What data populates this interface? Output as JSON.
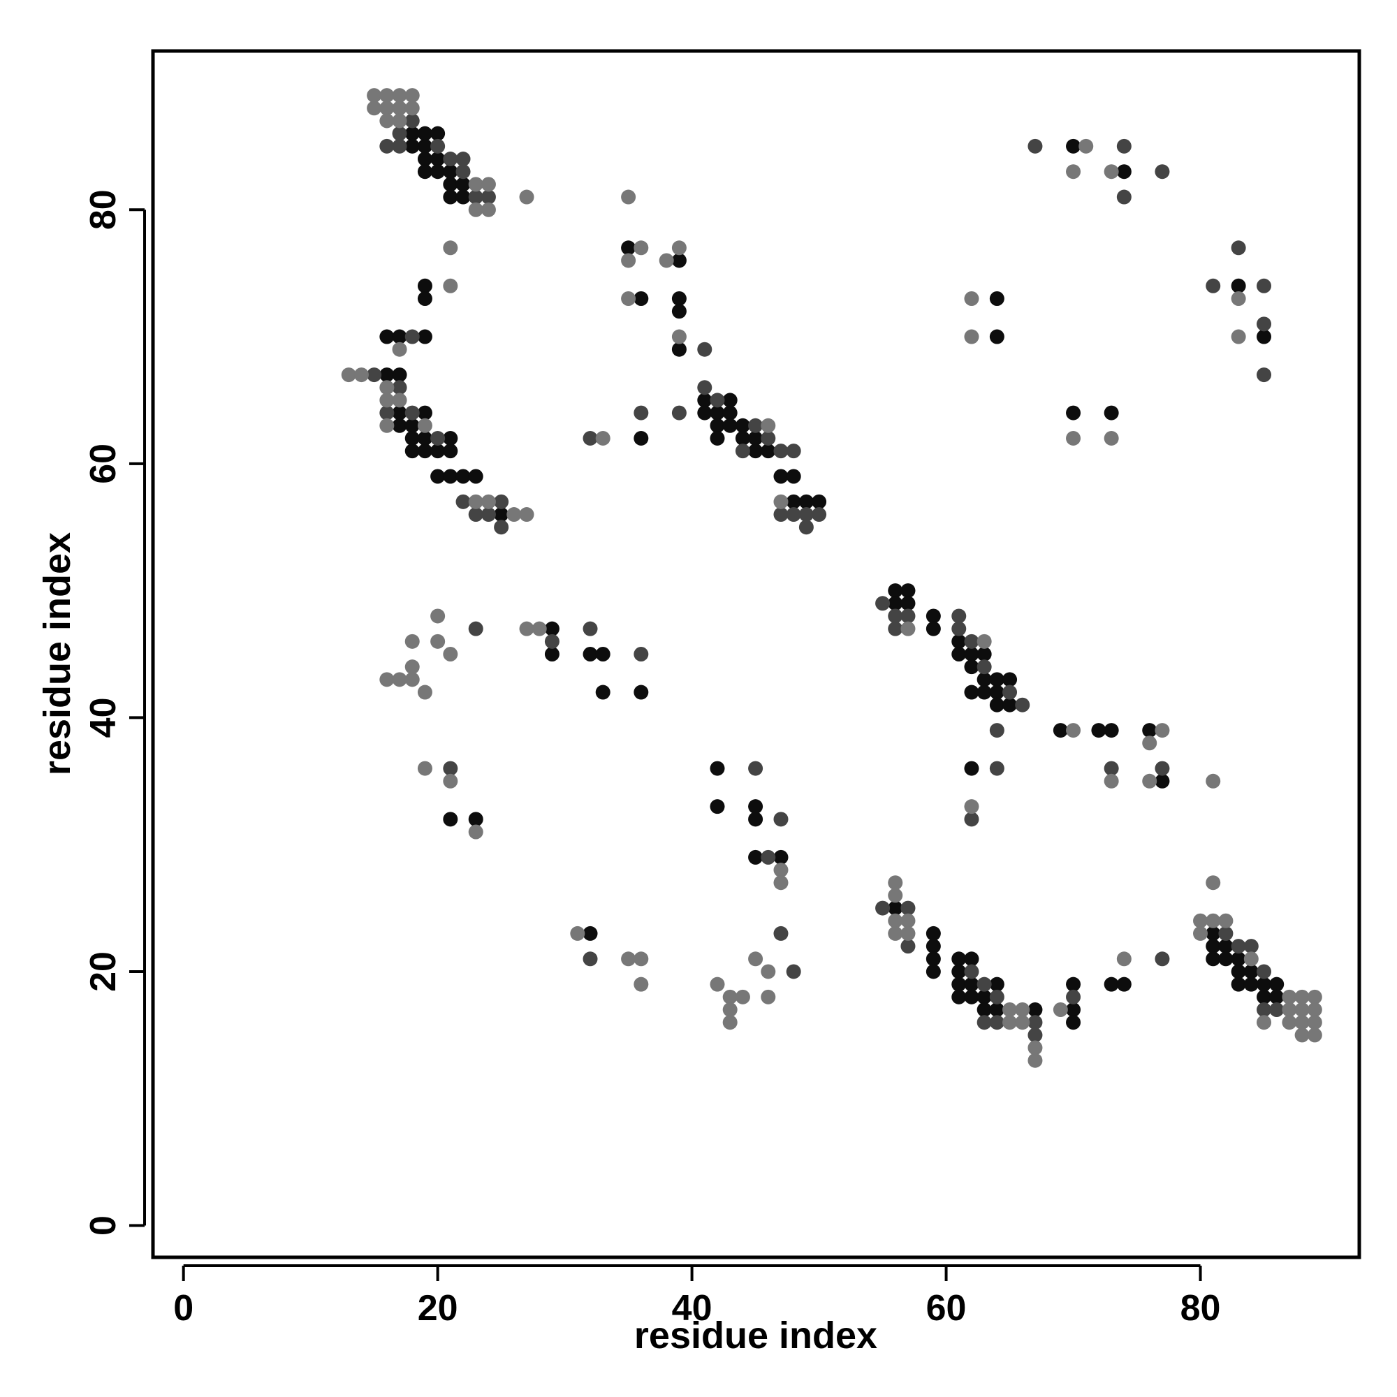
{
  "chart_data": {
    "type": "scatter",
    "xlabel": "residue index",
    "ylabel": "residue index",
    "xlim": [
      -2.4,
      92.5
    ],
    "ylim": [
      -2.5,
      92.5
    ],
    "xticks": [
      0,
      20,
      40,
      60,
      80
    ],
    "yticks": [
      0,
      20,
      40,
      60,
      80
    ],
    "series": [
      {
        "color": "#0d0d0d",
        "x": [
          18,
          19,
          20,
          18,
          19,
          19,
          20,
          19,
          20,
          21,
          21,
          22,
          21,
          22,
          70,
          74,
          35,
          39,
          19,
          83,
          19,
          36,
          39,
          64,
          39,
          16,
          17,
          19,
          64,
          85,
          39,
          16,
          17,
          41,
          43,
          17,
          19,
          41,
          42,
          43,
          70,
          73,
          17,
          18,
          42,
          43,
          44,
          18,
          19,
          21,
          36,
          42,
          44,
          45,
          18,
          19,
          20,
          21,
          45,
          46,
          20,
          21,
          22,
          23,
          47,
          48,
          48,
          49,
          50,
          25,
          56,
          57,
          56,
          57,
          59,
          29,
          59,
          61,
          29,
          32,
          33,
          61,
          62,
          63,
          62,
          63,
          64,
          65,
          33,
          36,
          62,
          63,
          64,
          64,
          65,
          69,
          72,
          73,
          76,
          42,
          62,
          77,
          42,
          45,
          21,
          23,
          45,
          45,
          47,
          56,
          32,
          59,
          81,
          59,
          81,
          82,
          59,
          61,
          62,
          81,
          82,
          83,
          59,
          61,
          83,
          84,
          61,
          62,
          64,
          70,
          73,
          74,
          83,
          84,
          85,
          86,
          61,
          62,
          63,
          85,
          86,
          63,
          64,
          67,
          70,
          70
        ],
        "values": [
          86,
          86,
          86,
          85,
          85,
          84,
          84,
          83,
          83,
          83,
          82,
          82,
          81,
          81,
          85,
          83,
          77,
          76,
          74,
          74,
          73,
          73,
          73,
          73,
          72,
          70,
          70,
          70,
          70,
          70,
          69,
          67,
          67,
          65,
          65,
          64,
          64,
          64,
          64,
          64,
          64,
          64,
          63,
          63,
          63,
          63,
          63,
          62,
          62,
          62,
          62,
          62,
          62,
          62,
          61,
          61,
          61,
          61,
          61,
          61,
          59,
          59,
          59,
          59,
          59,
          59,
          57,
          57,
          57,
          56,
          50,
          50,
          49,
          49,
          48,
          47,
          47,
          46,
          45,
          45,
          45,
          45,
          45,
          45,
          44,
          43,
          43,
          43,
          42,
          42,
          42,
          42,
          42,
          41,
          41,
          39,
          39,
          39,
          39,
          36,
          36,
          35,
          33,
          33,
          32,
          32,
          32,
          29,
          29,
          25,
          23,
          23,
          23,
          22,
          22,
          22,
          21,
          21,
          21,
          21,
          21,
          21,
          20,
          20,
          20,
          20,
          19,
          19,
          19,
          19,
          19,
          19,
          19,
          19,
          19,
          19,
          18,
          18,
          18,
          18,
          18,
          17,
          17,
          17,
          17,
          16
        ]
      },
      {
        "color": "#444444",
        "x": [
          18,
          17,
          16,
          17,
          20,
          21,
          22,
          22,
          23,
          24,
          67,
          74,
          77,
          74,
          83,
          81,
          85,
          85,
          18,
          41,
          15,
          85,
          17,
          41,
          42,
          16,
          18,
          36,
          39,
          45,
          20,
          32,
          46,
          44,
          47,
          48,
          22,
          25,
          23,
          24,
          47,
          48,
          49,
          50,
          25,
          49,
          55,
          56,
          57,
          61,
          23,
          32,
          56,
          61,
          29,
          62,
          36,
          63,
          65,
          66,
          64,
          21,
          45,
          64,
          73,
          77,
          47,
          62,
          46,
          55,
          57,
          47,
          82,
          57,
          83,
          84,
          32,
          77,
          48,
          62,
          85,
          63,
          64,
          70,
          85,
          86,
          63,
          64,
          67,
          67
        ],
        "values": [
          87,
          86,
          85,
          85,
          85,
          84,
          84,
          83,
          81,
          81,
          85,
          85,
          83,
          81,
          77,
          74,
          74,
          71,
          70,
          69,
          67,
          67,
          66,
          66,
          65,
          64,
          64,
          64,
          64,
          63,
          62,
          62,
          62,
          61,
          61,
          61,
          57,
          57,
          56,
          56,
          56,
          56,
          56,
          56,
          55,
          55,
          49,
          48,
          48,
          48,
          47,
          47,
          47,
          47,
          46,
          46,
          45,
          44,
          42,
          41,
          39,
          36,
          36,
          36,
          36,
          36,
          32,
          32,
          29,
          25,
          25,
          23,
          23,
          22,
          22,
          22,
          21,
          21,
          20,
          20,
          20,
          19,
          18,
          18,
          17,
          17,
          16,
          16,
          16,
          15
        ]
      },
      {
        "color": "#777777",
        "x": [
          15,
          16,
          17,
          18,
          15,
          16,
          17,
          18,
          16,
          17,
          23,
          24,
          27,
          35,
          23,
          24,
          71,
          70,
          73,
          21,
          36,
          39,
          35,
          38,
          21,
          35,
          62,
          83,
          39,
          62,
          83,
          17,
          13,
          14,
          16,
          16,
          17,
          16,
          19,
          46,
          33,
          70,
          73,
          23,
          24,
          47,
          26,
          27,
          20,
          27,
          28,
          57,
          18,
          20,
          63,
          21,
          18,
          16,
          17,
          18,
          19,
          70,
          77,
          76,
          19,
          21,
          73,
          76,
          81,
          62,
          23,
          47,
          47,
          56,
          81,
          56,
          56,
          57,
          80,
          81,
          82,
          31,
          56,
          57,
          80,
          35,
          36,
          45,
          74,
          84,
          46,
          36,
          42,
          43,
          44,
          46,
          87,
          88,
          89,
          43,
          65,
          66,
          69,
          87,
          88,
          89,
          43,
          65,
          66,
          85,
          87,
          88,
          89,
          88,
          89,
          67,
          67
        ],
        "values": [
          89,
          89,
          89,
          89,
          88,
          88,
          88,
          88,
          87,
          87,
          82,
          82,
          81,
          81,
          80,
          80,
          85,
          83,
          83,
          77,
          77,
          77,
          76,
          76,
          74,
          73,
          73,
          73,
          70,
          70,
          70,
          69,
          67,
          67,
          66,
          65,
          65,
          63,
          63,
          63,
          62,
          62,
          62,
          57,
          57,
          57,
          56,
          56,
          48,
          47,
          47,
          47,
          46,
          46,
          46,
          45,
          44,
          43,
          43,
          43,
          42,
          39,
          39,
          38,
          36,
          35,
          35,
          35,
          35,
          33,
          31,
          28,
          27,
          27,
          27,
          26,
          24,
          24,
          24,
          24,
          24,
          23,
          23,
          23,
          23,
          21,
          21,
          21,
          21,
          21,
          20,
          19,
          19,
          18,
          18,
          18,
          18,
          18,
          18,
          17,
          17,
          17,
          17,
          17,
          17,
          17,
          16,
          16,
          16,
          16,
          16,
          16,
          16,
          15,
          15,
          14,
          13
        ]
      }
    ]
  }
}
